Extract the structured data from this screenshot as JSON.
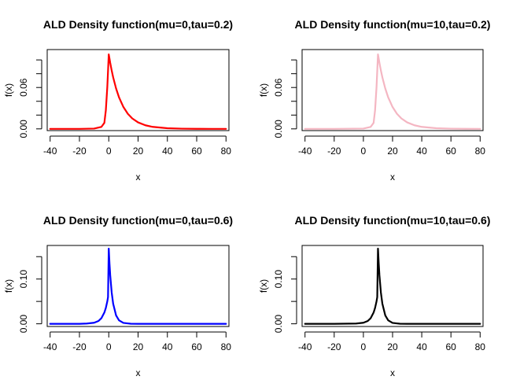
{
  "chart_data": [
    {
      "type": "line",
      "title": "ALD Density function(mu=0,tau=0.2)",
      "xlabel": "x",
      "ylabel": "f(x)",
      "xlim": [
        -42,
        82
      ],
      "ylim": [
        -0.0025,
        0.115
      ],
      "x_ticks": [
        -40,
        -20,
        0,
        20,
        40,
        60,
        80
      ],
      "y_ticks": [
        0.0,
        0.02,
        0.04,
        0.06,
        0.08,
        0.1
      ],
      "y_tick_labels": [
        "0.00",
        "",
        "",
        "0.06",
        "",
        ""
      ],
      "color": "#ff0000",
      "grid": false,
      "series": [
        {
          "x": [
            -40,
            -20,
            -10,
            -5,
            -3,
            -2,
            -1,
            -0.5,
            0,
            0.5,
            1,
            2,
            3,
            5,
            7,
            10,
            13,
            16,
            20,
            25,
            30,
            40,
            50,
            60,
            70,
            80
          ],
          "y": [
            0.0,
            0.0,
            0.0004,
            0.0029,
            0.0087,
            0.0267,
            0.0604,
            0.0837,
            0.108,
            0.102,
            0.0957,
            0.0846,
            0.0748,
            0.0585,
            0.0457,
            0.0317,
            0.0219,
            0.0152,
            0.0094,
            0.0052,
            0.0029,
            0.0009,
            0.0003,
            0.0001,
            0.0,
            0.0
          ]
        }
      ]
    },
    {
      "type": "line",
      "title": "ALD Density function(mu=10,tau=0.2)",
      "xlabel": "x",
      "ylabel": "f(x)",
      "xlim": [
        -42,
        82
      ],
      "ylim": [
        -0.0025,
        0.115
      ],
      "x_ticks": [
        -40,
        -20,
        0,
        20,
        40,
        60,
        80
      ],
      "y_ticks": [
        0.0,
        0.02,
        0.04,
        0.06,
        0.08,
        0.1
      ],
      "y_tick_labels": [
        "0.00",
        "",
        "",
        "0.06",
        "",
        ""
      ],
      "color": "#f4b6c2",
      "grid": false,
      "series": [
        {
          "x": [
            -40,
            -20,
            0,
            5,
            7,
            8,
            9,
            9.5,
            10,
            10.5,
            11,
            12,
            13,
            15,
            17,
            20,
            23,
            26,
            30,
            35,
            40,
            50,
            60,
            70,
            80
          ],
          "y": [
            0.0,
            0.0,
            0.0004,
            0.0029,
            0.0087,
            0.0267,
            0.0604,
            0.0837,
            0.108,
            0.102,
            0.0957,
            0.0846,
            0.0748,
            0.0585,
            0.0457,
            0.0317,
            0.0219,
            0.0152,
            0.0094,
            0.0052,
            0.0029,
            0.0009,
            0.0003,
            0.0001,
            0.0
          ]
        }
      ]
    },
    {
      "type": "line",
      "title": "ALD Density function(mu=0,tau=0.6)",
      "xlabel": "x",
      "ylabel": "f(x)",
      "xlim": [
        -42,
        82
      ],
      "ylim": [
        -0.006,
        0.175
      ],
      "x_ticks": [
        -40,
        -20,
        0,
        20,
        40,
        60,
        80
      ],
      "y_ticks": [
        0.0,
        0.05,
        0.1,
        0.15
      ],
      "y_tick_labels": [
        "0.00",
        "",
        "0.10",
        ""
      ],
      "color": "#0000ff",
      "grid": false,
      "series": [
        {
          "x": [
            -40,
            -20,
            -15,
            -10,
            -7,
            -5,
            -3,
            -2,
            -1,
            -0.5,
            0,
            0.5,
            1,
            2,
            3,
            5,
            7,
            10,
            15,
            20,
            30,
            40,
            60,
            80
          ],
          "y": [
            0.0,
            0.0,
            0.0006,
            0.0023,
            0.0063,
            0.0126,
            0.0251,
            0.0354,
            0.0501,
            0.0595,
            0.168,
            0.1349,
            0.1083,
            0.0698,
            0.045,
            0.0187,
            0.0078,
            0.002,
            0.0002,
            0.0,
            0.0,
            0.0,
            0.0,
            0.0
          ]
        }
      ]
    },
    {
      "type": "line",
      "title": "ALD Density function(mu=10,tau=0.6)",
      "xlabel": "x",
      "ylabel": "f(x)",
      "xlim": [
        -42,
        82
      ],
      "ylim": [
        -0.006,
        0.175
      ],
      "x_ticks": [
        -40,
        -20,
        0,
        20,
        40,
        60,
        80
      ],
      "y_ticks": [
        0.0,
        0.05,
        0.1,
        0.15
      ],
      "y_tick_labels": [
        "0.00",
        "",
        "0.10",
        ""
      ],
      "color": "#000000",
      "grid": false,
      "series": [
        {
          "x": [
            -40,
            -20,
            -5,
            0,
            3,
            5,
            7,
            8,
            9,
            9.5,
            10,
            10.5,
            11,
            12,
            13,
            15,
            17,
            20,
            25,
            30,
            40,
            50,
            60,
            80
          ],
          "y": [
            0.0,
            0.0,
            0.0006,
            0.0023,
            0.0063,
            0.0126,
            0.0251,
            0.0354,
            0.0501,
            0.0595,
            0.168,
            0.1349,
            0.1083,
            0.0698,
            0.045,
            0.0187,
            0.0078,
            0.002,
            0.0002,
            0.0,
            0.0,
            0.0,
            0.0,
            0.0
          ]
        }
      ]
    }
  ]
}
